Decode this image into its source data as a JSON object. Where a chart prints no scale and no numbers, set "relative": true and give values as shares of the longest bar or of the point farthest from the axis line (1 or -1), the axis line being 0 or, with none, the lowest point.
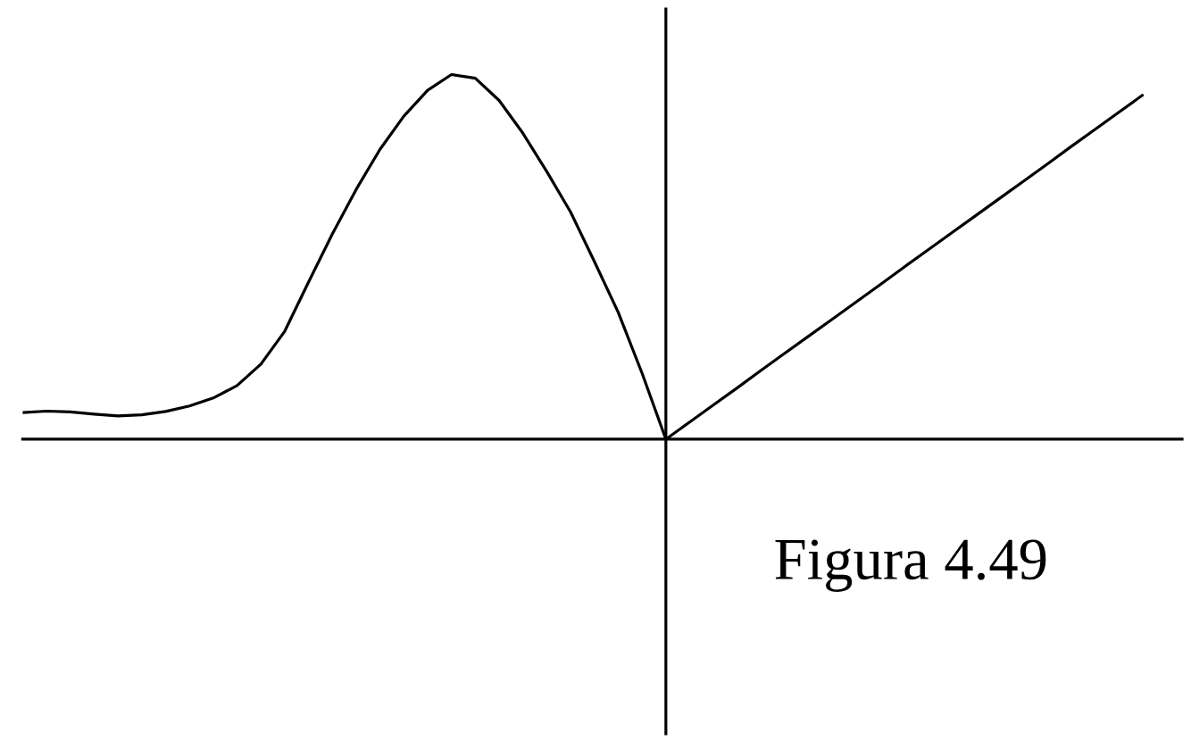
{
  "chart_data": {
    "type": "line",
    "relative": true,
    "categories": [
      null,
      null,
      null,
      null,
      null,
      null,
      null,
      null,
      null,
      null,
      null,
      null,
      null,
      null,
      null,
      null,
      null,
      null,
      null,
      null,
      null,
      null,
      null,
      null,
      null,
      null,
      null,
      null,
      null,
      null,
      null,
      null,
      null,
      null,
      null,
      null,
      null,
      null,
      null,
      null,
      null,
      null,
      null,
      null,
      null,
      null,
      null,
      null
    ],
    "series": [
      {
        "color": "#000000",
        "values": [
          0.073,
          0.077,
          0.075,
          0.069,
          0.064,
          0.067,
          0.076,
          0.091,
          0.113,
          0.147,
          0.206,
          0.296,
          0.431,
          0.563,
          0.685,
          0.795,
          0.886,
          0.957,
          1.0,
          0.99,
          0.929,
          0.839,
          0.734,
          0.623,
          0.487,
          0.348,
          0.181,
          0,
          0.047,
          0.094,
          0.141,
          0.189,
          0.236,
          0.283,
          0.33,
          0.377,
          0.424,
          0.472,
          0.519,
          0.566,
          0.613,
          0.66,
          0.707,
          0.754,
          0.802,
          0.849,
          0.896,
          0.943
        ]
      }
    ],
    "annotations": [
      "Figura 4.49"
    ]
  }
}
